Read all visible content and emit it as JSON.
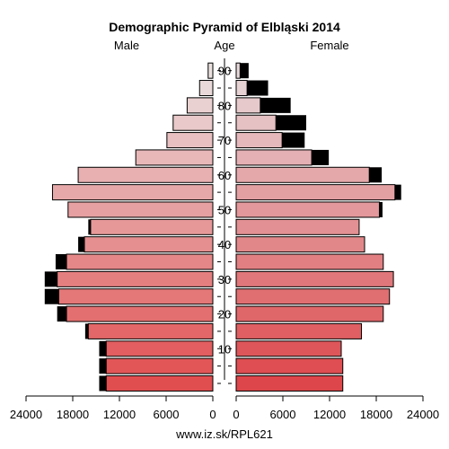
{
  "chart_data": {
    "type": "bar",
    "title": "Demographic Pyramid of Elbląski 2014",
    "left_label": "Male",
    "center_label": "Age",
    "right_label": "Female",
    "footer": "www.iz.sk/RPL621",
    "age_ticks": [
      "10",
      "20",
      "30",
      "40",
      "50",
      "60",
      "70",
      "80",
      "90"
    ],
    "x_ticks_left": [
      "24000",
      "18000",
      "12000",
      "6000",
      "0"
    ],
    "x_ticks_right": [
      "0",
      "6000",
      "12000",
      "18000",
      "24000"
    ],
    "xlim": [
      0,
      24000
    ],
    "age_groups": [
      "0-4",
      "5-9",
      "10-14",
      "15-19",
      "20-24",
      "25-29",
      "30-34",
      "35-39",
      "40-44",
      "45-49",
      "50-54",
      "55-59",
      "60-64",
      "65-69",
      "70-74",
      "75-79",
      "80-84",
      "85-89",
      "90+"
    ],
    "series": [
      {
        "name": "Male",
        "values": [
          13700,
          13700,
          13700,
          16000,
          18800,
          19800,
          20000,
          18800,
          16500,
          15700,
          18600,
          20600,
          17300,
          9900,
          5900,
          5100,
          3300,
          1700,
          600
        ],
        "excess_values": [
          900,
          900,
          900,
          400,
          1200,
          1800,
          1600,
          1400,
          800,
          300,
          0,
          0,
          0,
          0,
          0,
          0,
          0,
          0,
          0
        ]
      },
      {
        "name": "Female",
        "values": [
          13700,
          13700,
          13500,
          16100,
          18900,
          19700,
          20200,
          18900,
          16500,
          15800,
          18400,
          20400,
          17100,
          9700,
          5900,
          5100,
          3100,
          1400,
          500
        ],
        "excess_values": [
          0,
          0,
          0,
          0,
          0,
          0,
          0,
          0,
          0,
          0,
          400,
          800,
          1600,
          2200,
          2900,
          3900,
          3900,
          2700,
          1100
        ]
      }
    ]
  }
}
